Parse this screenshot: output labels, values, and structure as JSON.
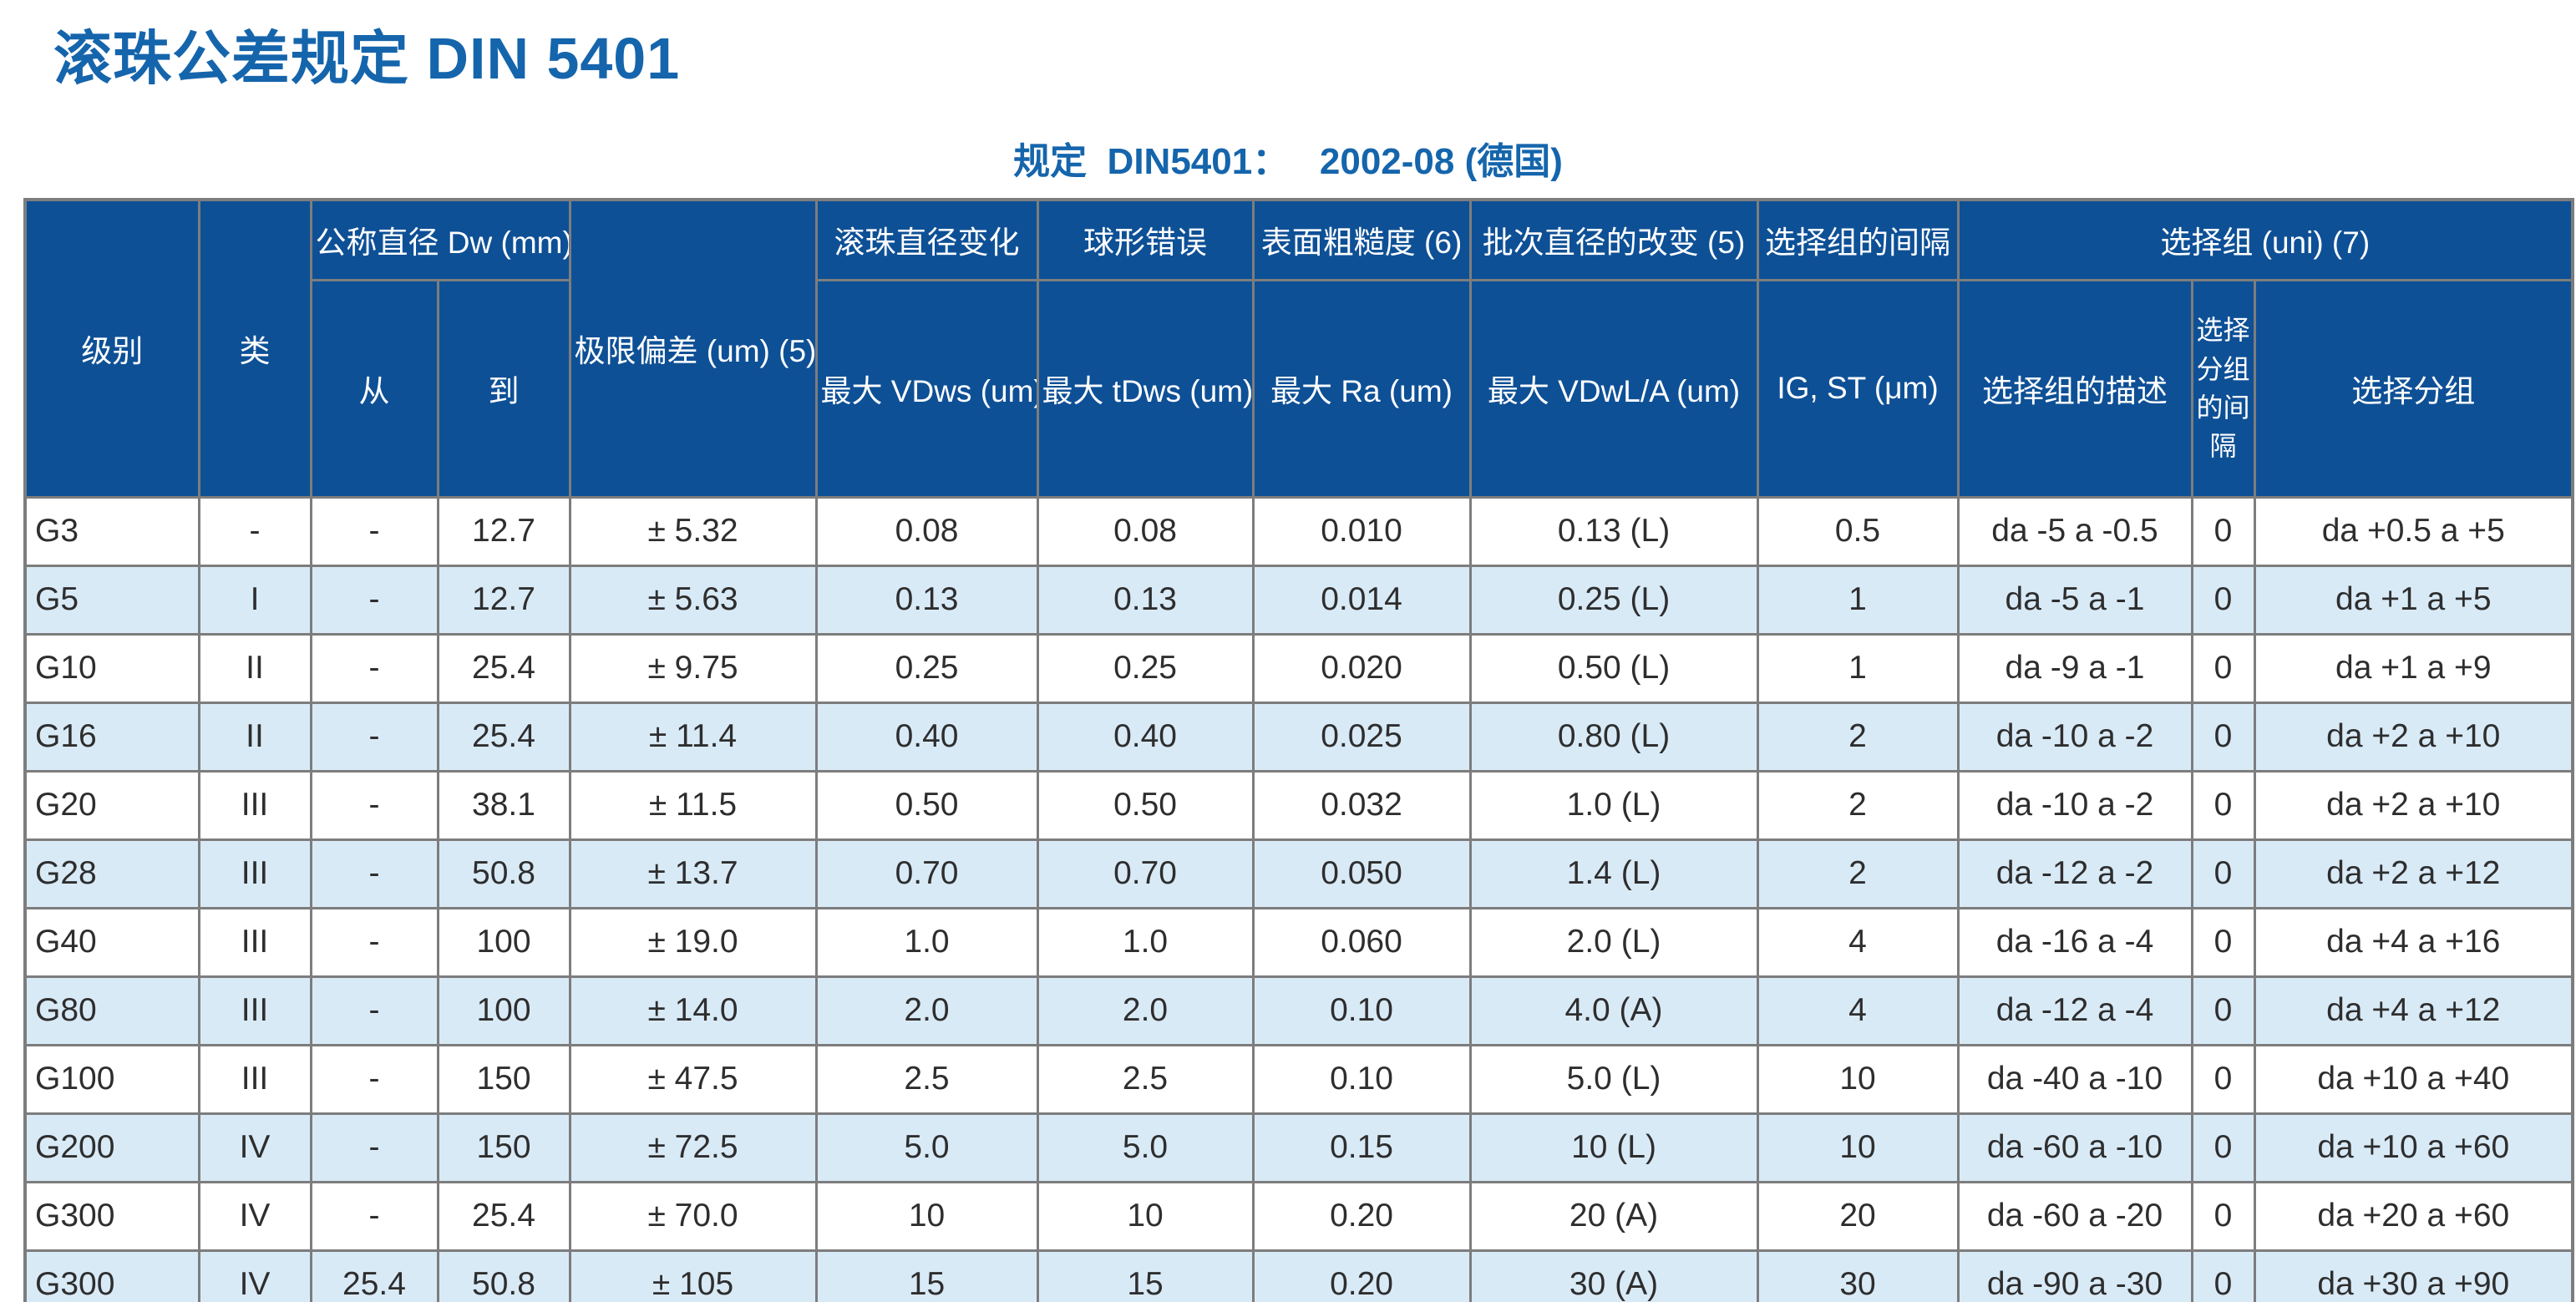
{
  "page": {
    "title": "滚珠公差规定 DIN 5401",
    "subtitle": "规定  DIN5401：   2002-08 (德国)"
  },
  "colors": {
    "title_blue": "#1565AC",
    "header_bg": "#0E5096",
    "header_text": "#FFFFFF",
    "row_bg": "#FFFFFF",
    "row_alt_bg": "#D9EAF7",
    "grid_border": "#7D7D7D",
    "data_text": "#2E2E2E"
  },
  "table": {
    "header": {
      "grade": "级别",
      "class": "类",
      "nominal_diameter": "公称直径 Dw (mm)",
      "from": "从",
      "to": "到",
      "limit_deviation": "极限偏差 (um) (5)",
      "ball_diameter_variation": "滚珠直径变化",
      "max_vdws": "最大  VDws (um)",
      "sphericity_error": "球形错误",
      "max_tdws": "最大  tDws (um)",
      "surface_roughness": "表面粗糙度 (6)",
      "max_ra": "最大  Ra (um)",
      "lot_diameter_change": "批次直径的改变 (5)",
      "max_vdwl_a": "最大  VDwL/A (um)",
      "selection_group_interval": "选择组的间隔",
      "ig_st": "IG, ST (μm)",
      "selection_group": "选择组  (uni) (7)",
      "selection_group_description": "选择组的描述",
      "selection_subgroup_interval": "选择分组的间隔",
      "selection_subgroup": "选择分组"
    },
    "rows": [
      [
        "G3",
        "-",
        "-",
        "12.7",
        "± 5.32",
        "0.08",
        "0.08",
        "0.010",
        "0.13 (L)",
        "0.5",
        "da -5 a -0.5",
        "0",
        "da +0.5 a +5"
      ],
      [
        "G5",
        "I",
        "-",
        "12.7",
        "± 5.63",
        "0.13",
        "0.13",
        "0.014",
        "0.25 (L)",
        "1",
        "da -5 a -1",
        "0",
        "da +1 a +5"
      ],
      [
        "G10",
        "II",
        "-",
        "25.4",
        "± 9.75",
        "0.25",
        "0.25",
        "0.020",
        "0.50 (L)",
        "1",
        "da -9 a -1",
        "0",
        "da +1 a +9"
      ],
      [
        "G16",
        "II",
        "-",
        "25.4",
        "± 11.4",
        "0.40",
        "0.40",
        "0.025",
        "0.80 (L)",
        "2",
        "da -10 a -2",
        "0",
        "da +2 a +10"
      ],
      [
        "G20",
        "III",
        "-",
        "38.1",
        "± 11.5",
        "0.50",
        "0.50",
        "0.032",
        "1.0 (L)",
        "2",
        "da -10 a -2",
        "0",
        "da +2 a +10"
      ],
      [
        "G28",
        "III",
        "-",
        "50.8",
        "± 13.7",
        "0.70",
        "0.70",
        "0.050",
        "1.4 (L)",
        "2",
        "da -12 a -2",
        "0",
        "da +2 a +12"
      ],
      [
        "G40",
        "III",
        "-",
        "100",
        "± 19.0",
        "1.0",
        "1.0",
        "0.060",
        "2.0 (L)",
        "4",
        "da -16 a -4",
        "0",
        "da +4 a +16"
      ],
      [
        "G80",
        "III",
        "-",
        "100",
        "± 14.0",
        "2.0",
        "2.0",
        "0.10",
        "4.0 (A)",
        "4",
        "da -12 a -4",
        "0",
        "da +4 a +12"
      ],
      [
        "G100",
        "III",
        "-",
        "150",
        "± 47.5",
        "2.5",
        "2.5",
        "0.10",
        "5.0 (L)",
        "10",
        "da -40 a -10",
        "0",
        "da +10 a +40"
      ],
      [
        "G200",
        "IV",
        "-",
        "150",
        "± 72.5",
        "5.0",
        "5.0",
        "0.15",
        "10 (L)",
        "10",
        "da -60 a -10",
        "0",
        "da +10 a +60"
      ],
      [
        "G300",
        "IV",
        "-",
        "25.4",
        "± 70.0",
        "10",
        "10",
        "0.20",
        "20 (A)",
        "20",
        "da -60 a -20",
        "0",
        "da +20 a +60"
      ],
      [
        "G300",
        "IV",
        "25.4",
        "50.8",
        "± 105",
        "15",
        "15",
        "0.20",
        "30 (A)",
        "30",
        "da -90 a -30",
        "0",
        "da +30 a +90"
      ]
    ]
  }
}
